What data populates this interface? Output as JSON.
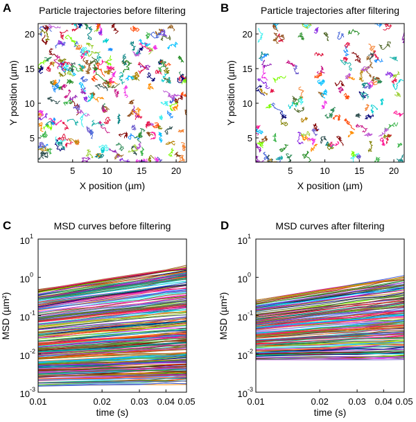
{
  "chart_data": [
    {
      "type": "line",
      "panel": "A",
      "title": "Particle trajectories before filtering",
      "xlabel": "X position (µm)",
      "ylabel": "Y position (µm)",
      "xlim": [
        0,
        21.5
      ],
      "ylim": [
        1.5,
        21.5
      ],
      "xticks": [
        5,
        10,
        15,
        20
      ],
      "yticks": [
        5,
        10,
        15,
        20
      ],
      "series_description": "many random-walk particle trajectories, densely filling the field"
    },
    {
      "type": "line",
      "panel": "B",
      "title": "Particle trajectories after filtering",
      "xlabel": "X position (µm)",
      "ylabel": "Y position (µm)",
      "xlim": [
        0,
        21.5
      ],
      "ylim": [
        1.5,
        21.5
      ],
      "xticks": [
        5,
        10,
        15,
        20
      ],
      "yticks": [
        5,
        10,
        15,
        20
      ],
      "series_description": "fewer random-walk particle trajectories after filtering"
    },
    {
      "type": "line",
      "panel": "C",
      "title": "MSD curves before filtering",
      "xlabel": "time (s)",
      "ylabel": "MSD (µm²)",
      "xscale": "log",
      "yscale": "log",
      "xlim": [
        0.01,
        0.05
      ],
      "ylim": [
        0.001,
        10
      ],
      "xticks": [
        0.01,
        0.02,
        0.03,
        0.04,
        0.05
      ],
      "xticklabels": [
        "0.01",
        "0.02",
        "0.03",
        "0.04",
        "0.05"
      ],
      "yticks": [
        0.001,
        0.01,
        0.1,
        1,
        10
      ],
      "yticklabels": [
        "10",
        "10",
        "10",
        "10",
        "10"
      ],
      "ytick_exponents": [
        "-3",
        "-2",
        "-1",
        "0",
        "1"
      ],
      "msd_start_range": [
        0.0015,
        0.5
      ],
      "msd_end_max": 3.5
    },
    {
      "type": "line",
      "panel": "D",
      "title": "MSD curves after filtering",
      "xlabel": "time (s)",
      "ylabel": "MSD (µm²)",
      "xscale": "log",
      "yscale": "log",
      "xlim": [
        0.01,
        0.05
      ],
      "ylim": [
        0.001,
        10
      ],
      "xticks": [
        0.01,
        0.02,
        0.03,
        0.04,
        0.05
      ],
      "xticklabels": [
        "0.01",
        "0.02",
        "0.03",
        "0.04",
        "0.05"
      ],
      "yticks": [
        0.001,
        0.01,
        0.1,
        1,
        10
      ],
      "yticklabels": [
        "10",
        "10",
        "10",
        "10",
        "10"
      ],
      "ytick_exponents": [
        "-3",
        "-2",
        "-1",
        "0",
        "1"
      ],
      "msd_start_range": [
        0.007,
        0.25
      ],
      "msd_end_max": 1.5
    }
  ],
  "panel_letters": [
    "A",
    "B",
    "C",
    "D"
  ],
  "palette": [
    "#e6194b",
    "#3cb44b",
    "#4363d8",
    "#f58231",
    "#911eb4",
    "#46f0f0",
    "#f032e6",
    "#9acd32",
    "#008080",
    "#9a6324",
    "#800000",
    "#2e8b57",
    "#808000",
    "#000075",
    "#ff1493",
    "#00bfff",
    "#ff8c00",
    "#6a5acd",
    "#228b22",
    "#dc143c",
    "#1e90ff",
    "#8b4513",
    "#20b2aa",
    "#ba55d3",
    "#b8860b",
    "#2f4f4f",
    "#ff4500",
    "#7cfc00",
    "#00ced1",
    "#c71585",
    "#556b2f",
    "#8a2be2"
  ]
}
